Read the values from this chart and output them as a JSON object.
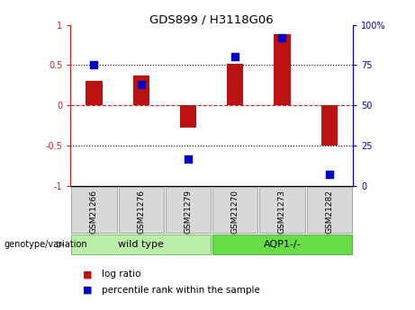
{
  "title": "GDS899 / H3118G06",
  "samples": [
    "GSM21266",
    "GSM21276",
    "GSM21279",
    "GSM21270",
    "GSM21273",
    "GSM21282"
  ],
  "log_ratios": [
    0.3,
    0.37,
    -0.28,
    0.52,
    0.88,
    -0.5
  ],
  "percentile_ranks": [
    75,
    63,
    17,
    80,
    92,
    7
  ],
  "bar_color": "#bb1111",
  "dot_color": "#0000cc",
  "group1_label": "wild type",
  "group2_label": "AQP1-/-",
  "group1_color": "#bbeeaa",
  "group2_color": "#66dd44",
  "genotype_label": "genotype/variation",
  "ylim_left": [
    -1,
    1
  ],
  "ylim_right": [
    0,
    100
  ],
  "yticks_left": [
    -1,
    -0.5,
    0,
    0.5,
    1
  ],
  "yticks_right": [
    0,
    25,
    50,
    75,
    100
  ],
  "ytick_labels_left": [
    "-1",
    "-0.5",
    "0",
    "0.5",
    "1"
  ],
  "ytick_labels_right": [
    "0",
    "25",
    "50",
    "75",
    "100%"
  ],
  "hlines": [
    0.5,
    0.0,
    -0.5
  ],
  "hline_styles": [
    "dotted",
    "dotted",
    "dotted"
  ],
  "hline_colors": [
    "black",
    "#cc2222",
    "black"
  ],
  "legend_red_label": "log ratio",
  "legend_blue_label": "percentile rank within the sample",
  "bar_width": 0.35,
  "dot_size": 40,
  "left_spine_color": "#cc2222",
  "right_spine_color": "#0000cc"
}
